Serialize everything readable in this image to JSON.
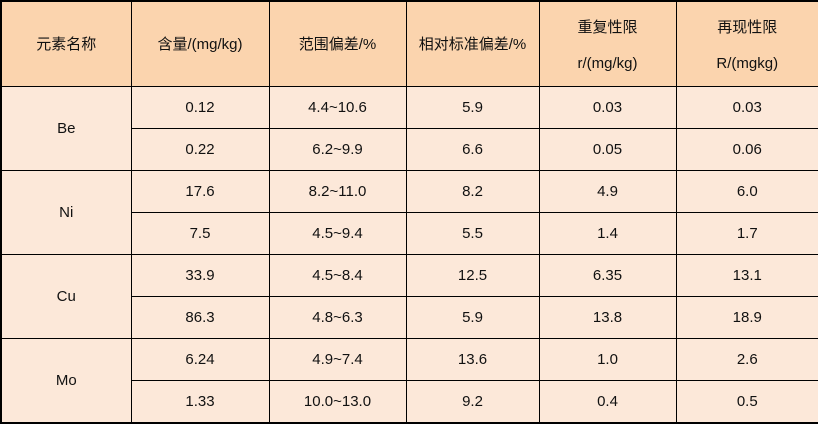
{
  "colors": {
    "header_bg": "#fbd4ae",
    "body_bg": "#fce8d9",
    "border": "#000000",
    "text": "#111111"
  },
  "table": {
    "headers": {
      "element": "元素名称",
      "content": "含量/(mg/kg)",
      "range_dev": "范围偏差/%",
      "rsd": "相对标准偏差/%",
      "repeatability_line1": "重复性限",
      "repeatability_line2": "r/(mg/kg)",
      "reproducibility_line1": "再现性限",
      "reproducibility_line2": "R/(mgkg)"
    },
    "groups": [
      {
        "element": "Be",
        "rows": [
          {
            "content": "0.12",
            "range": "4.4~10.6",
            "rsd": "5.9",
            "r": "0.03",
            "R": "0.03"
          },
          {
            "content": "0.22",
            "range": "6.2~9.9",
            "rsd": "6.6",
            "r": "0.05",
            "R": "0.06"
          }
        ]
      },
      {
        "element": "Ni",
        "rows": [
          {
            "content": "17.6",
            "range": "8.2~11.0",
            "rsd": "8.2",
            "r": "4.9",
            "R": "6.0"
          },
          {
            "content": "7.5",
            "range": "4.5~9.4",
            "rsd": "5.5",
            "r": "1.4",
            "R": "1.7"
          }
        ]
      },
      {
        "element": "Cu",
        "rows": [
          {
            "content": "33.9",
            "range": "4.5~8.4",
            "rsd": "12.5",
            "r": "6.35",
            "R": "13.1"
          },
          {
            "content": "86.3",
            "range": "4.8~6.3",
            "rsd": "5.9",
            "r": "13.8",
            "R": "18.9"
          }
        ]
      },
      {
        "element": "Mo",
        "rows": [
          {
            "content": "6.24",
            "range": "4.9~7.4",
            "rsd": "13.6",
            "r": "1.0",
            "R": "2.6"
          },
          {
            "content": "1.33",
            "range": "10.0~13.0",
            "rsd": "9.2",
            "r": "0.4",
            "R": "0.5"
          }
        ]
      }
    ]
  },
  "chart_data": {
    "type": "table",
    "columns": [
      "元素名称",
      "含量/(mg/kg)",
      "范围偏差/%",
      "相对标准偏差/%",
      "重复性限 r/(mg/kg)",
      "再现性限 R/(mgkg)"
    ],
    "rows": [
      [
        "Be",
        "0.12",
        "4.4~10.6",
        "5.9",
        "0.03",
        "0.03"
      ],
      [
        "Be",
        "0.22",
        "6.2~9.9",
        "6.6",
        "0.05",
        "0.06"
      ],
      [
        "Ni",
        "17.6",
        "8.2~11.0",
        "8.2",
        "4.9",
        "6.0"
      ],
      [
        "Ni",
        "7.5",
        "4.5~9.4",
        "5.5",
        "1.4",
        "1.7"
      ],
      [
        "Cu",
        "33.9",
        "4.5~8.4",
        "12.5",
        "6.35",
        "13.1"
      ],
      [
        "Cu",
        "86.3",
        "4.8~6.3",
        "5.9",
        "13.8",
        "18.9"
      ],
      [
        "Mo",
        "6.24",
        "4.9~7.4",
        "13.6",
        "1.0",
        "2.6"
      ],
      [
        "Mo",
        "1.33",
        "10.0~13.0",
        "9.2",
        "0.4",
        "0.5"
      ]
    ]
  }
}
